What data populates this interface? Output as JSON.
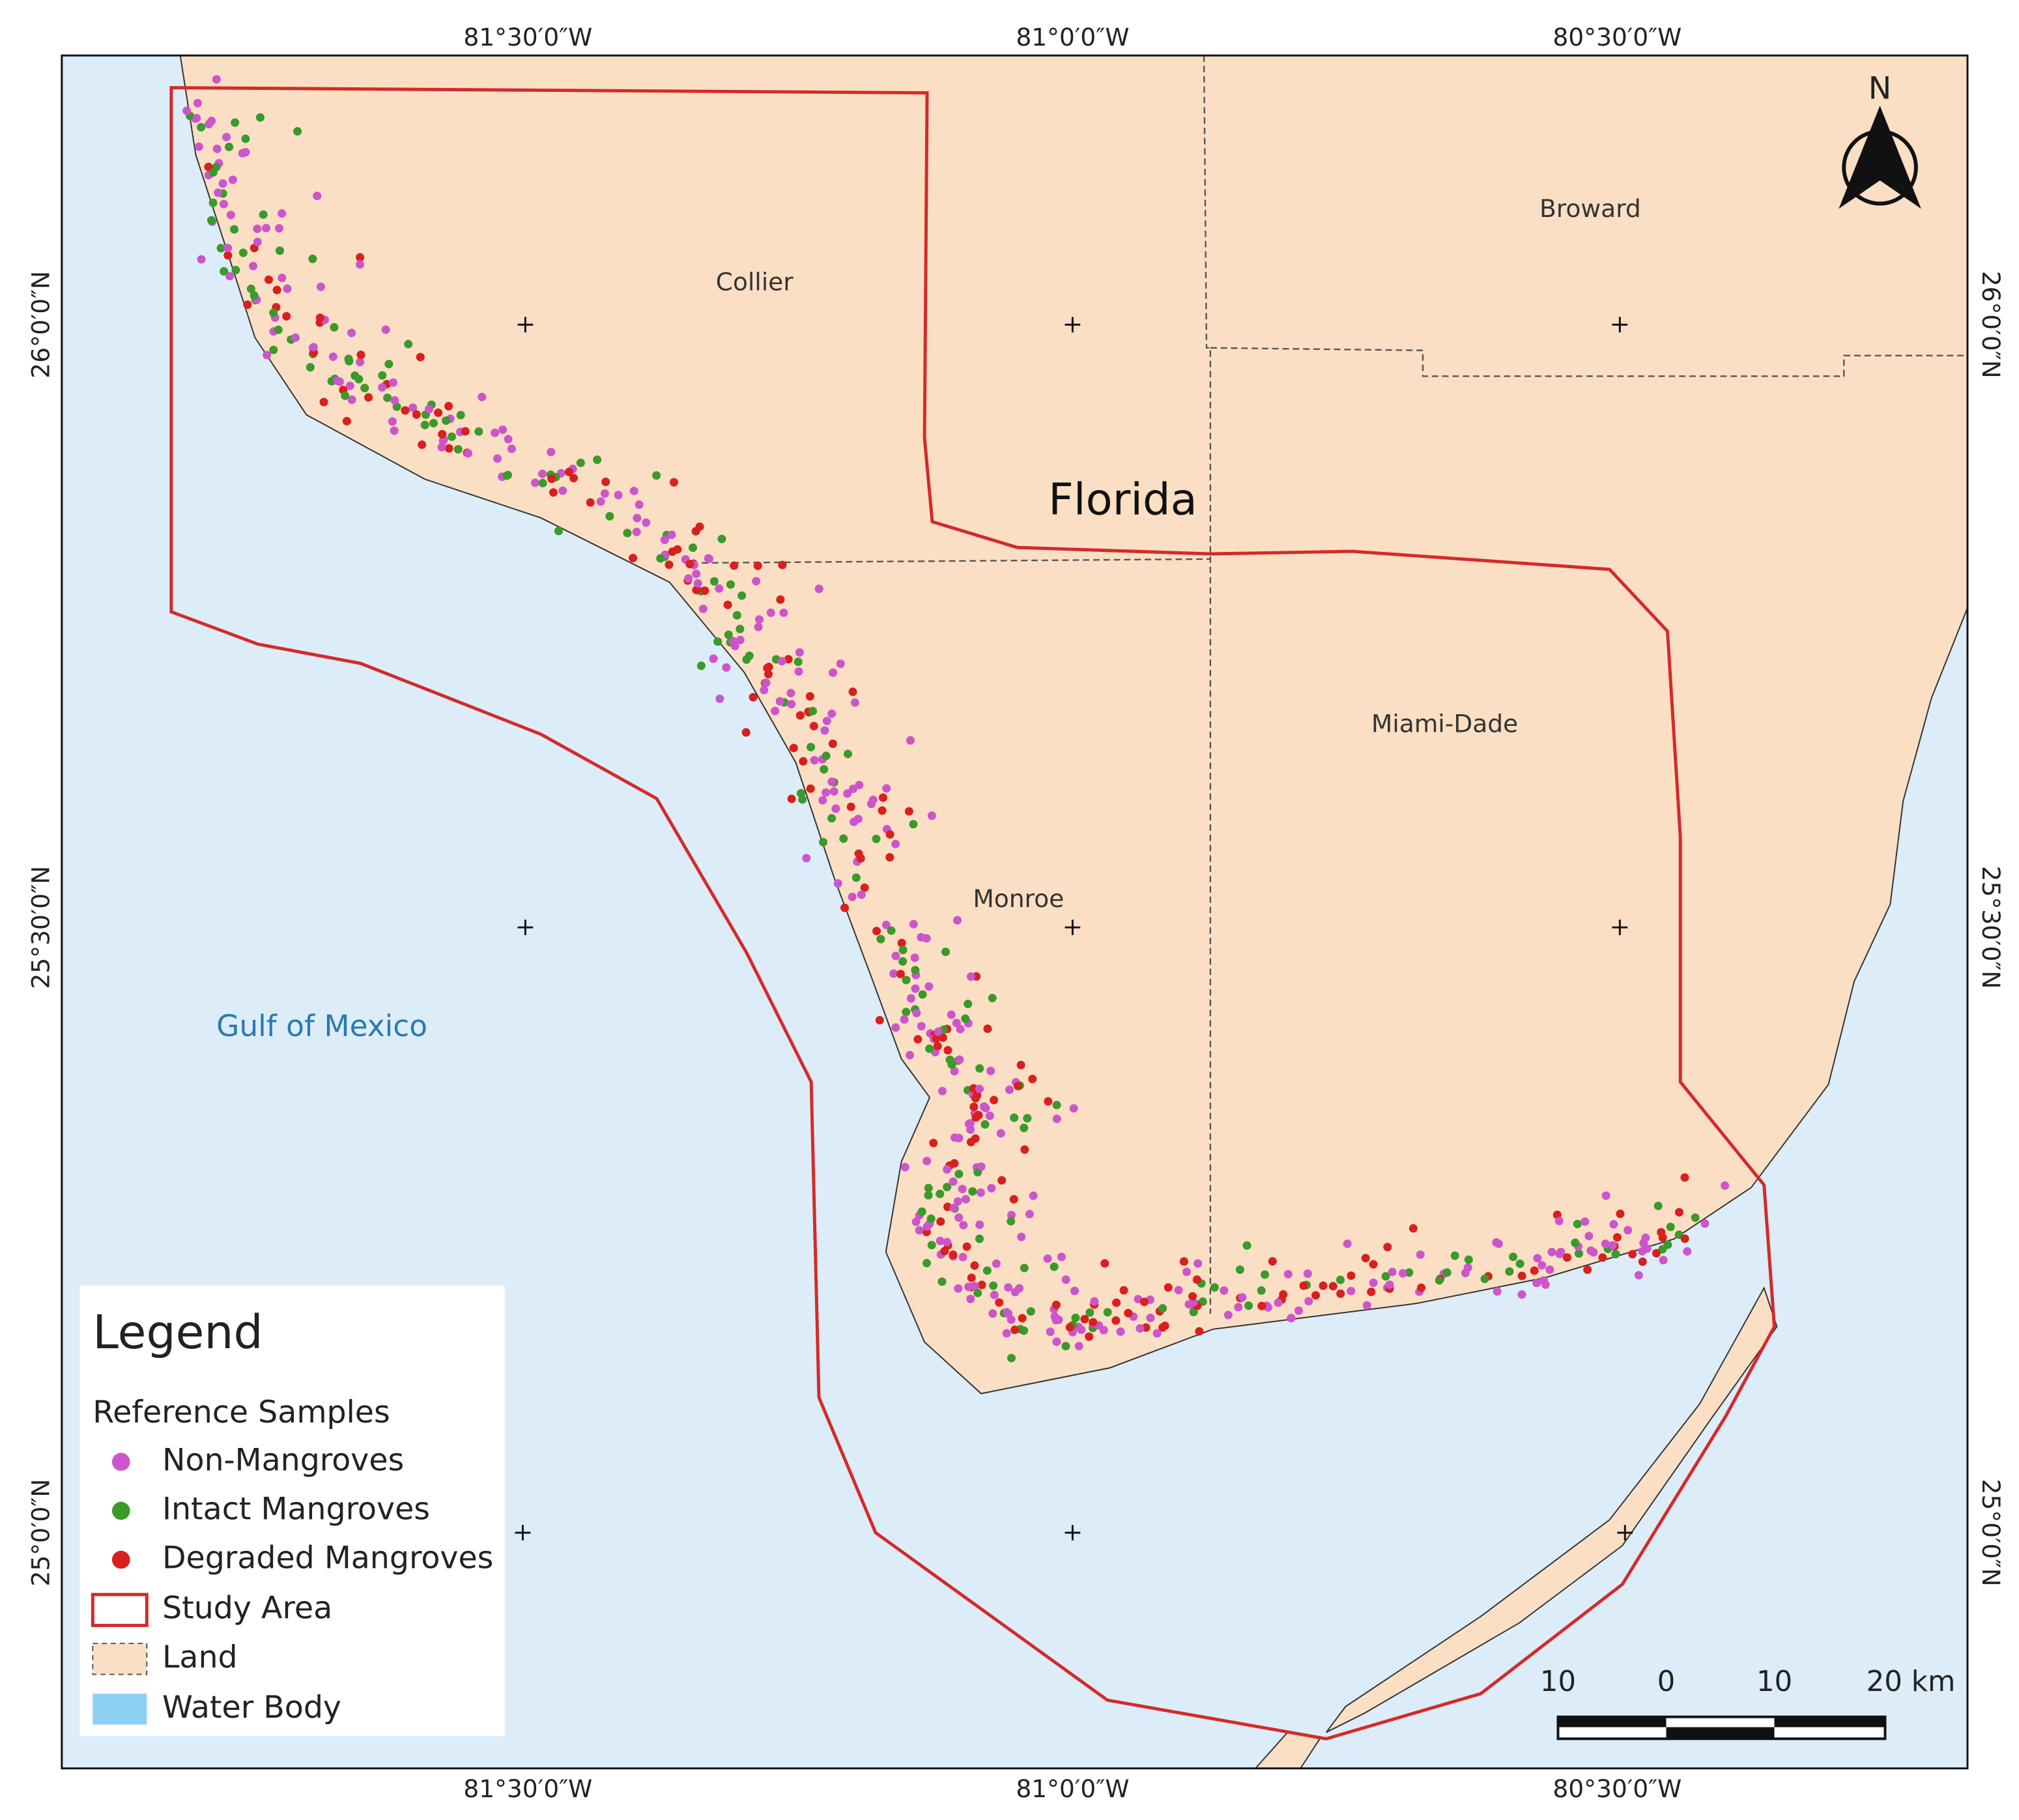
{
  "map": {
    "top_labels": [
      "81°30′0″W",
      "81°0′0″W",
      "80°30′0″W"
    ],
    "bottom_labels": [
      "81°30′0″W",
      "81°0′0″W",
      "80°30′0″W"
    ],
    "left_labels": [
      "26°0′0″N",
      "25°30′0″N",
      "25°0′0″N"
    ],
    "right_labels": [
      "26°0′0″N",
      "25°30′0″N",
      "25°0′0″N"
    ],
    "places": [
      "Collier",
      "Broward",
      "Florida",
      "Miami-Dade",
      "Monroe",
      "Gulf of Mexico"
    ],
    "north": "N",
    "legend": {
      "title": "Legend",
      "subtitle": "Reference Samples",
      "items": [
        "Non-Mangroves",
        "Intact Mangroves",
        "Degraded Mangroves",
        "Study Area",
        "Land",
        "Water Body"
      ]
    },
    "scale_bar": [
      "10",
      "0",
      "10",
      "20 km"
    ]
  }
}
